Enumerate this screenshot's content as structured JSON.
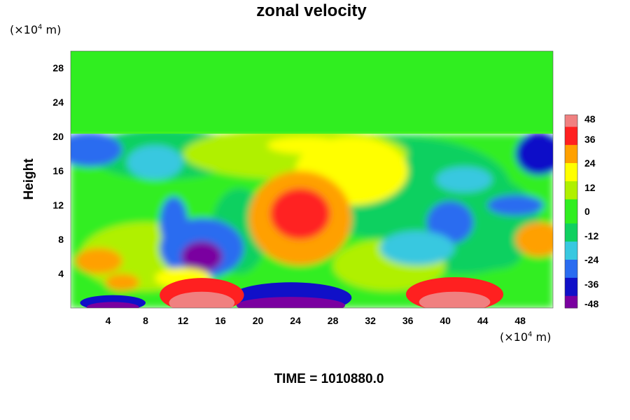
{
  "chart_data": {
    "type": "heatmap",
    "title": "zonal velocity",
    "ylabel": "Height",
    "xlabel": "",
    "x_unit": "(×10⁴ m)",
    "y_unit": "(×10⁴ m)",
    "unit_base": "(×10",
    "unit_exp": "4",
    "unit_tail": " m)",
    "xlim": [
      0,
      51.5
    ],
    "ylim": [
      0,
      30
    ],
    "x_ticks": [
      "4",
      "8",
      "12",
      "16",
      "20",
      "24",
      "28",
      "32",
      "36",
      "40",
      "44",
      "48"
    ],
    "y_ticks": [
      "4",
      "8",
      "12",
      "16",
      "20",
      "24",
      "28"
    ],
    "colorbar_ticks": [
      "48",
      "36",
      "24",
      "12",
      "0",
      "-12",
      "-24",
      "-36",
      "-48"
    ],
    "color_range": [
      -48,
      48
    ],
    "colormap": [
      "#7a00a0",
      "#1010c8",
      "#2a6cf0",
      "#38c8e0",
      "#10d060",
      "#30ee20",
      "#b0f000",
      "#ffff00",
      "#ffa000",
      "#ff2020",
      "#f08080"
    ],
    "grid": false,
    "field_summary": {
      "upper_layer": {
        "y_range": [
          20.5,
          30
        ],
        "value": 0
      },
      "tropopause_height": 20.3,
      "features": [
        {
          "type": "positive_max",
          "x": 24.5,
          "y": 10.5,
          "value": 44
        },
        {
          "type": "negative_min",
          "x": 14,
          "y": 6,
          "value": -48
        },
        {
          "type": "negative_min",
          "x": 40,
          "y": 8,
          "value": -30
        },
        {
          "type": "negative_min",
          "x": 1,
          "y": 18.5,
          "value": -36
        },
        {
          "type": "negative_min",
          "x": 50,
          "y": 18.5,
          "value": -38
        },
        {
          "type": "negative_min",
          "x": 23.5,
          "y": 0.8,
          "value": -50
        },
        {
          "type": "negative_min",
          "x": 5,
          "y": 0.4,
          "value": -48
        },
        {
          "type": "positive_max",
          "x": 14,
          "y": 0.9,
          "value": 50
        },
        {
          "type": "positive_max",
          "x": 41,
          "y": 1.0,
          "value": 50
        },
        {
          "type": "positive_max",
          "x": 50,
          "y": 7.5,
          "value": 30
        }
      ]
    }
  },
  "footer": {
    "time_label": "TIME = 1010880.0"
  }
}
